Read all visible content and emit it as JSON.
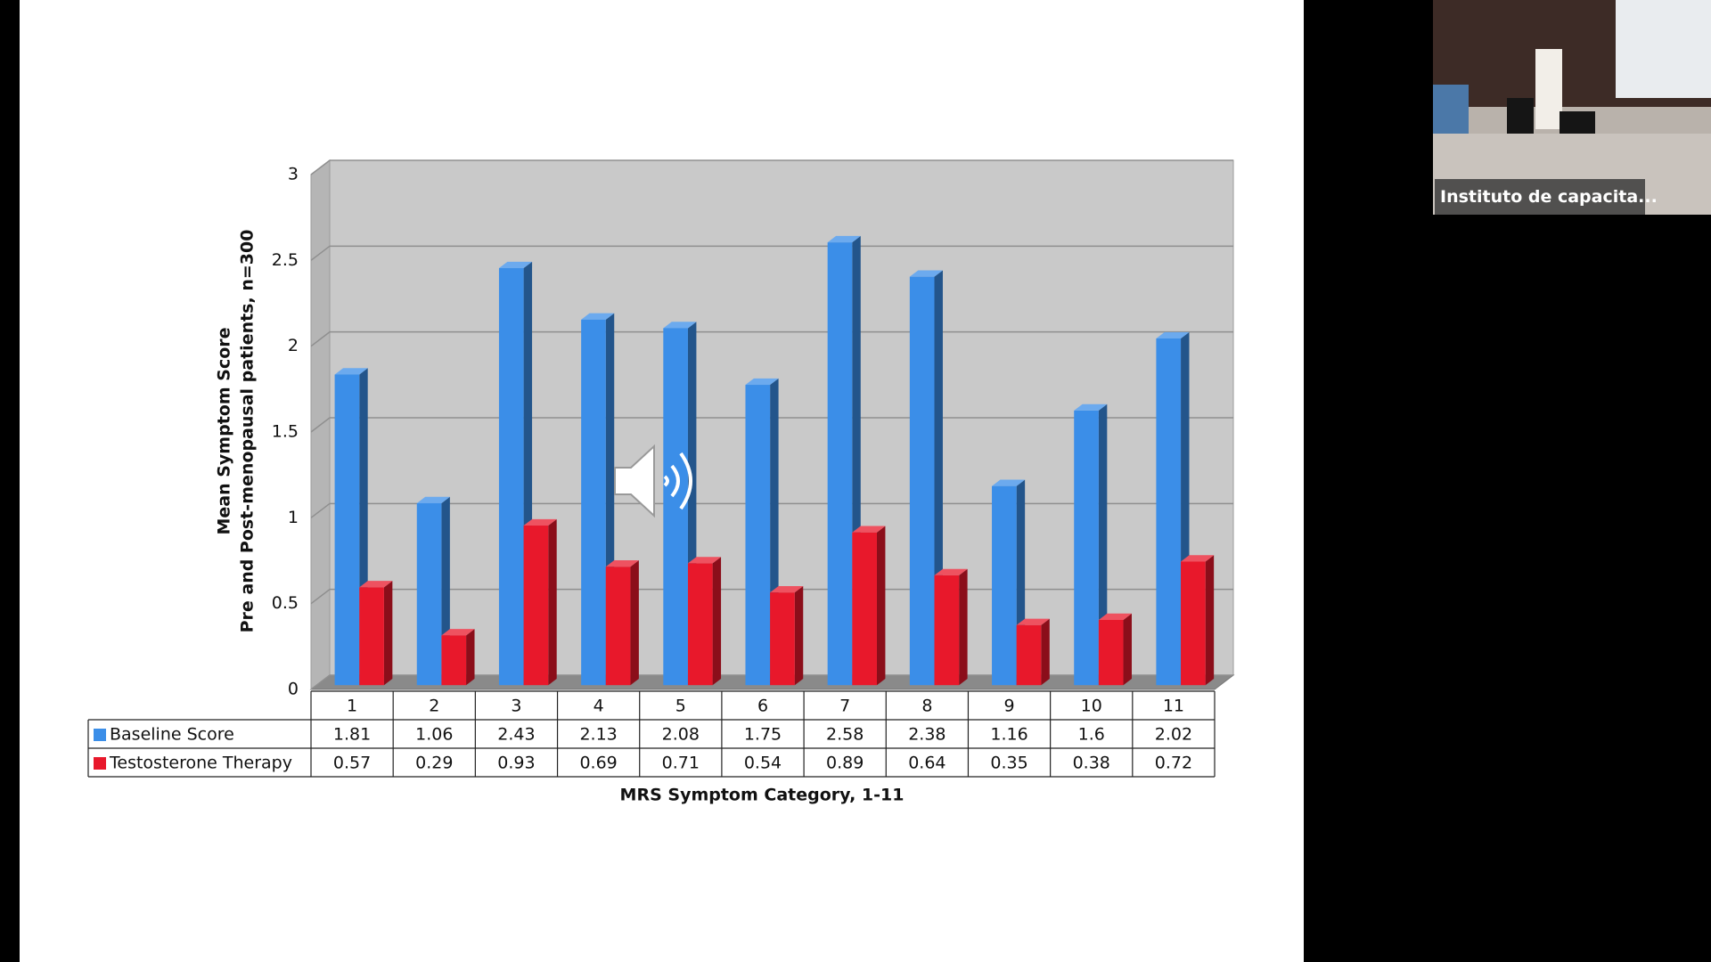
{
  "chart_data": {
    "type": "bar3d",
    "ylabel": [
      "Mean Symptom Score",
      "Pre and Post-menopausal patients, n=300"
    ],
    "xlabel": "MRS Symptom Category, 1-11",
    "categories": [
      "1",
      "2",
      "3",
      "4",
      "5",
      "6",
      "7",
      "8",
      "9",
      "10",
      "11"
    ],
    "series": [
      {
        "name": "Baseline Score",
        "color": "#3b8ee8",
        "values": [
          1.81,
          1.06,
          2.43,
          2.13,
          2.08,
          1.75,
          2.58,
          2.38,
          1.16,
          1.6,
          2.02
        ]
      },
      {
        "name": "Testosterone Therapy",
        "color": "#e8182b",
        "values": [
          0.57,
          0.29,
          0.93,
          0.69,
          0.71,
          0.54,
          0.89,
          0.64,
          0.35,
          0.38,
          0.72
        ]
      }
    ],
    "ylim": [
      0,
      3
    ],
    "yticks": [
      0,
      0.5,
      1,
      1.5,
      2,
      2.5,
      3
    ],
    "grid": true
  },
  "participant_label": "Instituto de capacita..."
}
